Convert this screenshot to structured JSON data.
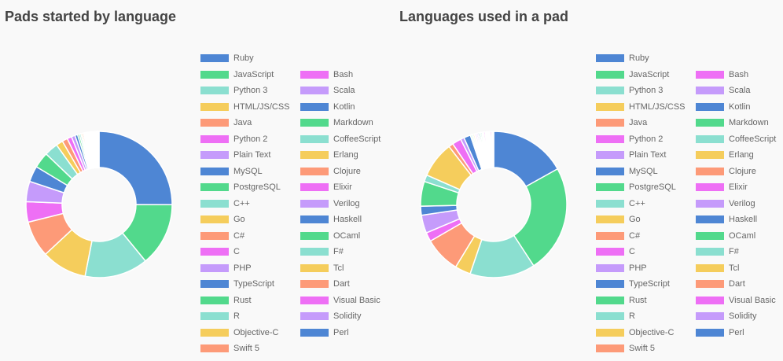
{
  "palette": [
    "#4e86d4",
    "#52d98c",
    "#8bdfd0",
    "#f5cd5c",
    "#fd9a78",
    "#ee6ff5",
    "#c59bfb"
  ],
  "chart_data": [
    {
      "type": "pie",
      "variant": "doughnut",
      "title": "Pads started by language",
      "legend": "right",
      "unit": "percent (estimated)",
      "categories": [
        "Ruby",
        "JavaScript",
        "Python 3",
        "HTML/JS/CSS",
        "Java",
        "Python 2",
        "Plain Text",
        "MySQL",
        "PostgreSQL",
        "C++",
        "Go",
        "C#",
        "C",
        "PHP",
        "TypeScript",
        "Rust",
        "R",
        "Objective-C",
        "Swift 5",
        "Bash",
        "Scala",
        "Kotlin",
        "Markdown",
        "CoffeeScript",
        "Erlang",
        "Clojure",
        "Elixir",
        "Verilog",
        "Haskell",
        "OCaml",
        "F#",
        "Tcl",
        "Dart",
        "Visual Basic",
        "Solidity",
        "Perl"
      ],
      "values": [
        25,
        14,
        14,
        10,
        8,
        4.5,
        4.5,
        3.5,
        3.5,
        3,
        1.5,
        1.2,
        1,
        0.8,
        0.6,
        0.4,
        0.35,
        0.3,
        0.3,
        0.25,
        0.25,
        0.25,
        0.2,
        0.2,
        0.2,
        0.2,
        0.2,
        0.2,
        0.2,
        0.2,
        0.2,
        0.2,
        0.2,
        0.15,
        0.15,
        0.15
      ]
    },
    {
      "type": "pie",
      "variant": "doughnut",
      "title": "Languages used in a pad",
      "legend": "right",
      "unit": "percent (estimated)",
      "categories": [
        "Ruby",
        "JavaScript",
        "Python 3",
        "HTML/JS/CSS",
        "Java",
        "Python 2",
        "Plain Text",
        "MySQL",
        "PostgreSQL",
        "C++",
        "Go",
        "C#",
        "C",
        "PHP",
        "TypeScript",
        "Rust",
        "R",
        "Objective-C",
        "Swift 5",
        "Bash",
        "Scala",
        "Kotlin",
        "Markdown",
        "CoffeeScript",
        "Erlang",
        "Clojure",
        "Elixir",
        "Verilog",
        "Haskell",
        "OCaml",
        "F#",
        "Tcl",
        "Dart",
        "Visual Basic",
        "Solidity",
        "Perl"
      ],
      "values": [
        17,
        24,
        14.5,
        3.5,
        8,
        2,
        4,
        2,
        5.5,
        1.5,
        8,
        1,
        2,
        0.8,
        1.5,
        0.3,
        0.3,
        0.3,
        0.2,
        0.3,
        0.3,
        0.3,
        0.3,
        0.3,
        0.2,
        0.2,
        0.3,
        0.2,
        0.2,
        0.2,
        0.2,
        0.2,
        0.2,
        0.3,
        0.2,
        0.2
      ]
    }
  ]
}
